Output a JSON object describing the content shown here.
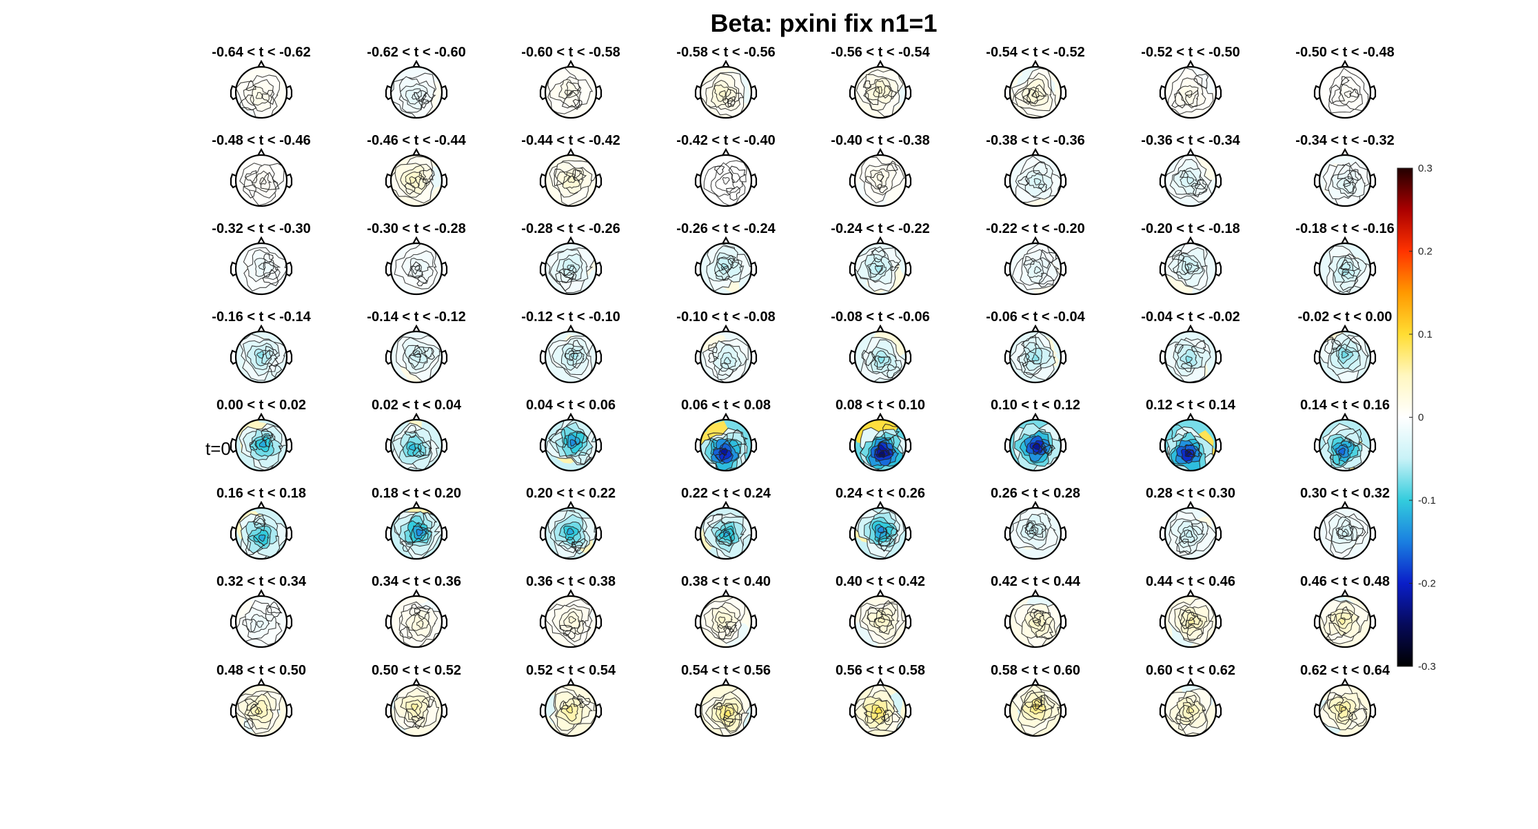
{
  "figure": {
    "title": "Beta: pxini fix  n1=1",
    "t0_label": "t=0"
  },
  "chart_data": {
    "type": "heatmap",
    "subtype": "scalp topography grid",
    "title": "Beta: pxini fix  n1=1",
    "grid": {
      "rows": 8,
      "cols": 8
    },
    "panel_titles": [
      "-0.64 < t < -0.62",
      "-0.62 < t < -0.60",
      "-0.60 < t < -0.58",
      "-0.58 < t < -0.56",
      "-0.56 < t < -0.54",
      "-0.54 < t < -0.52",
      "-0.52 < t < -0.50",
      "-0.50 < t < -0.48",
      "-0.48 < t < -0.46",
      "-0.46 < t < -0.44",
      "-0.44 < t < -0.42",
      "-0.42 < t < -0.40",
      "-0.40 < t < -0.38",
      "-0.38 < t < -0.36",
      "-0.36 < t < -0.34",
      "-0.34 < t < -0.32",
      "-0.32 < t < -0.30",
      "-0.30 < t < -0.28",
      "-0.28 < t < -0.26",
      "-0.26 < t < -0.24",
      "-0.24 < t < -0.22",
      "-0.22 < t < -0.20",
      "-0.20 < t < -0.18",
      "-0.18 < t < -0.16",
      "-0.16 < t < -0.14",
      "-0.14 < t < -0.12",
      "-0.12 < t < -0.10",
      "-0.10 < t < -0.08",
      "-0.08 < t < -0.06",
      "-0.06 < t < -0.04",
      "-0.04 < t < -0.02",
      "-0.02 < t < 0.00",
      "0.00 < t < 0.02",
      "0.02 < t < 0.04",
      "0.04 < t < 0.06",
      "0.06 < t < 0.08",
      "0.08 < t < 0.10",
      "0.10 < t < 0.12",
      "0.12 < t < 0.14",
      "0.14 < t < 0.16",
      "0.16 < t < 0.18",
      "0.18 < t < 0.20",
      "0.20 < t < 0.22",
      "0.22 < t < 0.24",
      "0.24 < t < 0.26",
      "0.26 < t < 0.28",
      "0.28 < t < 0.30",
      "0.30 < t < 0.32",
      "0.32 < t < 0.34",
      "0.34 < t < 0.36",
      "0.36 < t < 0.38",
      "0.38 < t < 0.40",
      "0.40 < t < 0.42",
      "0.42 < t < 0.44",
      "0.44 < t < 0.46",
      "0.46 < t < 0.48",
      "0.48 < t < 0.50",
      "0.50 < t < 0.52",
      "0.52 < t < 0.54",
      "0.54 < t < 0.56",
      "0.56 < t < 0.58",
      "0.58 < t < 0.60",
      "0.60 < t < 0.62",
      "0.62 < t < 0.64"
    ],
    "panel_values": [
      0.02,
      -0.03,
      0.02,
      0.04,
      0.04,
      0.04,
      0.02,
      0.01,
      0.01,
      0.05,
      0.04,
      0.0,
      0.02,
      -0.04,
      -0.04,
      -0.03,
      -0.02,
      -0.02,
      -0.05,
      -0.06,
      -0.06,
      -0.03,
      -0.05,
      -0.06,
      -0.07,
      -0.05,
      -0.06,
      -0.05,
      -0.07,
      -0.07,
      -0.07,
      -0.08,
      -0.12,
      -0.11,
      -0.14,
      -0.22,
      -0.24,
      -0.22,
      -0.22,
      -0.16,
      -0.12,
      -0.14,
      -0.12,
      -0.12,
      -0.14,
      -0.05,
      -0.05,
      -0.04,
      -0.02,
      0.03,
      0.03,
      0.04,
      0.05,
      0.05,
      0.06,
      0.06,
      0.06,
      0.06,
      0.07,
      0.08,
      0.09,
      0.08,
      0.06,
      0.07
    ],
    "colorbar": {
      "ticks": [
        0.3,
        0.2,
        0.1,
        0,
        -0.1,
        -0.2,
        -0.3
      ],
      "tick_labels": [
        "0.3",
        "0.2",
        "0.1",
        "0",
        "-0.1",
        "-0.2",
        "-0.3"
      ],
      "range": [
        -0.3,
        0.3
      ],
      "colormap": [
        "#220000",
        "#aa0000",
        "#ff3300",
        "#ff9900",
        "#ffdd33",
        "#fff7c0",
        "#ffffff",
        "#c8f2f7",
        "#33ccdd",
        "#1a7fe0",
        "#0a1ec8",
        "#060a5a",
        "#000000"
      ]
    },
    "t0_label": "t=0"
  }
}
